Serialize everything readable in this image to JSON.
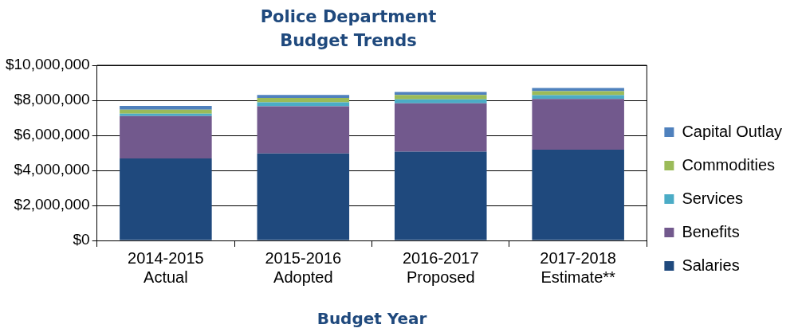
{
  "chart_data": {
    "type": "bar",
    "title": "Police Department Budget Trends",
    "xlabel": "Budget Year",
    "stacked": true,
    "legend": "right",
    "grid": "y",
    "categories": [
      "2014-2015 Actual",
      "2015-2016 Adopted",
      "2016-2017 Proposed",
      "2017-2018 Estimate**"
    ],
    "series": [
      {
        "name": "Salaries",
        "color": "#1f497d",
        "values": [
          4680000,
          4970000,
          5070000,
          5180000
        ]
      },
      {
        "name": "Benefits",
        "color": "#72598d",
        "values": [
          2420000,
          2690000,
          2760000,
          2900000
        ]
      },
      {
        "name": "Services",
        "color": "#4bacc6",
        "values": [
          140000,
          230000,
          230000,
          210000
        ]
      },
      {
        "name": "Commodities",
        "color": "#9bbb59",
        "values": [
          230000,
          250000,
          250000,
          230000
        ]
      },
      {
        "name": "Capital Outlay",
        "color": "#4f81bd",
        "values": [
          210000,
          170000,
          170000,
          190000
        ]
      }
    ],
    "ylim": [
      0,
      10000000
    ],
    "yticks": [
      {
        "value": 0,
        "label": "$0"
      },
      {
        "value": 2000000,
        "label": "$2,000,000"
      },
      {
        "value": 4000000,
        "label": "$4,000,000"
      },
      {
        "value": 6000000,
        "label": "$6,000,000"
      },
      {
        "value": 8000000,
        "label": "$8,000,000"
      },
      {
        "value": 10000000,
        "label": "$10,000,000"
      }
    ]
  }
}
